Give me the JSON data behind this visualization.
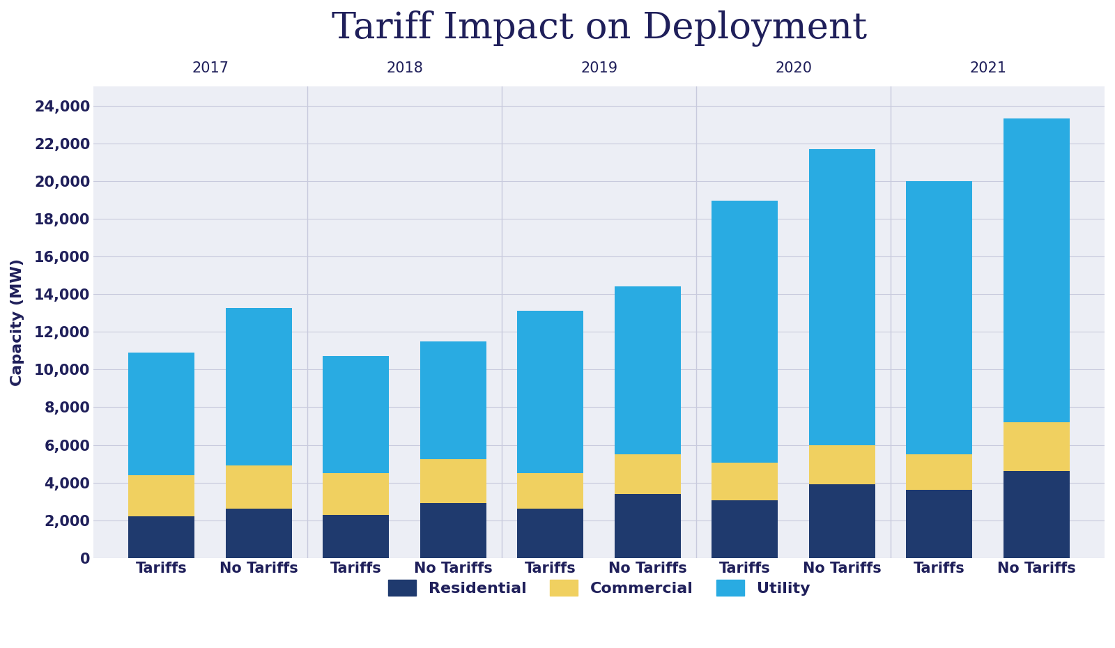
{
  "title": "Tariff Impact on Deployment",
  "ylabel": "Capacity (MW)",
  "years": [
    "2017",
    "2018",
    "2019",
    "2020",
    "2021"
  ],
  "categories": [
    "Tariffs",
    "No Tariffs",
    "Tariffs",
    "No Tariffs",
    "Tariffs",
    "No Tariffs",
    "Tariffs",
    "No Tariffs",
    "Tariffs",
    "No Tariffs"
  ],
  "residential": [
    2200,
    2600,
    2300,
    2900,
    2600,
    3400,
    3050,
    3900,
    3600,
    4600
  ],
  "commercial": [
    2200,
    2300,
    2200,
    2350,
    1900,
    2100,
    2000,
    2100,
    1900,
    2600
  ],
  "utility": [
    6500,
    8350,
    6200,
    6250,
    8600,
    8900,
    13900,
    15700,
    14500,
    16100
  ],
  "residential_color": "#1F3A6E",
  "commercial_color": "#F0D060",
  "utility_color": "#29ABE2",
  "figure_bg_color": "#FFFFFF",
  "plot_bg_color": "#ECEEF5",
  "title_color": "#1F1F5A",
  "axis_label_color": "#1F1F5A",
  "tick_label_color": "#1F1F5A",
  "year_label_color": "#1F1F5A",
  "grid_color": "#C8CADD",
  "divider_color": "#C8CADD",
  "ylim": [
    0,
    25000
  ],
  "yticks": [
    0,
    2000,
    4000,
    6000,
    8000,
    10000,
    12000,
    14000,
    16000,
    18000,
    20000,
    22000,
    24000
  ],
  "title_fontsize": 38,
  "axis_label_fontsize": 16,
  "tick_fontsize": 15,
  "legend_fontsize": 16,
  "year_label_fontsize": 15
}
